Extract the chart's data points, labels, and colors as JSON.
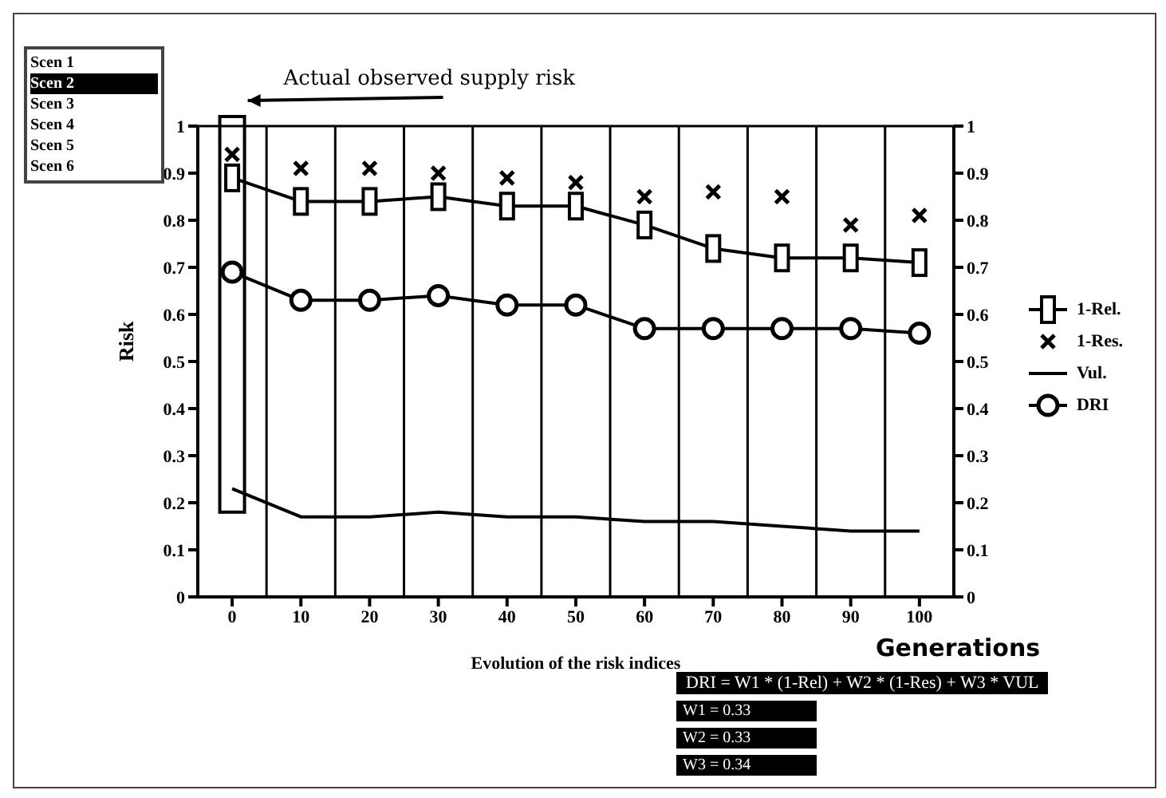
{
  "chart_data": {
    "type": "line",
    "xlabel": "Evolution of the risk indices",
    "ylabel": "Risk",
    "categories": [
      "0",
      "10",
      "20",
      "30",
      "40",
      "50",
      "60",
      "70",
      "80",
      "90",
      "100"
    ],
    "series": [
      {
        "name": "1-Rel.",
        "color": "#000000",
        "marker": "square",
        "values": [
          0.89,
          0.84,
          0.84,
          0.85,
          0.83,
          0.83,
          0.79,
          0.74,
          0.72,
          0.72,
          0.71
        ]
      },
      {
        "name": "1-Res.",
        "type": "scatter",
        "color": "#000000",
        "marker": "cross",
        "values": [
          0.94,
          0.91,
          0.91,
          0.9,
          0.89,
          0.88,
          0.85,
          0.86,
          0.85,
          0.79,
          0.81
        ]
      },
      {
        "name": "Vul.",
        "color": "#000000",
        "marker": "none",
        "values": [
          0.23,
          0.17,
          0.17,
          0.18,
          0.17,
          0.17,
          0.16,
          0.16,
          0.15,
          0.14,
          0.14
        ]
      },
      {
        "name": "DRI",
        "color": "#000000",
        "marker": "circle",
        "values": [
          0.69,
          0.63,
          0.63,
          0.64,
          0.62,
          0.62,
          0.57,
          0.57,
          0.57,
          0.57,
          0.56
        ]
      }
    ],
    "ylim": [
      0,
      1
    ],
    "yticks": [
      0,
      0.1,
      0.2,
      0.3,
      0.4,
      0.5,
      0.6,
      0.7,
      0.8,
      0.9,
      1
    ],
    "y2lim": [
      0,
      1
    ],
    "y2ticks": [
      0,
      0.1,
      0.2,
      0.3,
      0.4,
      0.5,
      0.6,
      0.7,
      0.8,
      0.9,
      1
    ],
    "grid": true,
    "legend": "right",
    "annotations": [
      "Actual observed supply risk",
      "Scen 1",
      "Scen 2",
      "Scen 3",
      "Scen 4",
      "Scen 5",
      "Scen 6",
      "Generations",
      "DRI = W1 * (1-Rel) + W2 * (1-Res) + W3 * VUL",
      "W1 = 0.33",
      "W2 = 0.33",
      "W3 = 0.34"
    ]
  }
}
